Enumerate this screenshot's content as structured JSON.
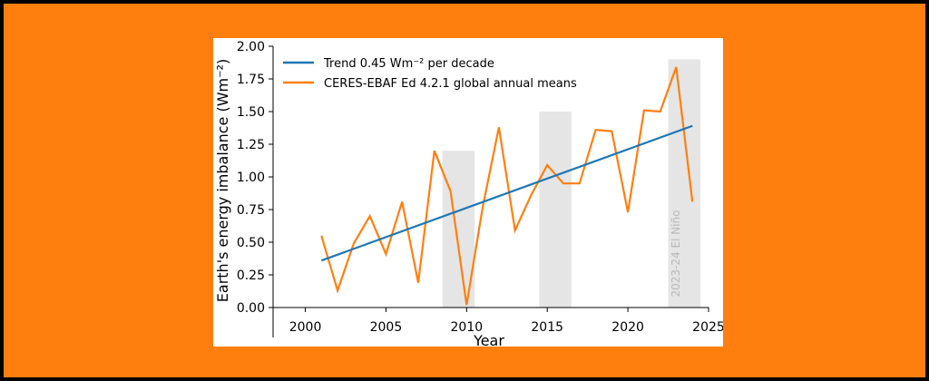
{
  "colors": {
    "border": "#000000",
    "background": "#FF7F0E",
    "trend": "#1F77B4",
    "series": "#FF7F0E",
    "shade": "#E5E5E5",
    "annotation": "#B8B8B8"
  },
  "chart_data": {
    "type": "line",
    "title": "",
    "xlabel": "Year",
    "ylabel": "Earth's energy imbalance (Wm⁻²)",
    "xlim": [
      1998,
      2025
    ],
    "ylim": [
      0,
      2
    ],
    "xticks": [
      2000,
      2005,
      2010,
      2015,
      2020,
      2025
    ],
    "yticks": [
      0.0,
      0.25,
      0.5,
      0.75,
      1.0,
      1.25,
      1.5,
      1.75,
      2.0
    ],
    "xtick_labels": [
      "2000",
      "2005",
      "2010",
      "2015",
      "2020",
      "2025"
    ],
    "ytick_labels": [
      "0.00",
      "0.25",
      "0.50",
      "0.75",
      "1.00",
      "1.25",
      "1.50",
      "1.75",
      "2.00"
    ],
    "grid": false,
    "legend_position": "top-left",
    "series": [
      {
        "name": "Trend 0.45 Wm⁻² per decade",
        "color": "#1F77B4",
        "x": [
          2001,
          2024
        ],
        "y": [
          0.36,
          1.39
        ]
      },
      {
        "name": "CERES-EBAF Ed 4.2.1 global annual means",
        "color": "#FF7F0E",
        "x": [
          2001,
          2002,
          2003,
          2004,
          2005,
          2006,
          2007,
          2008,
          2009,
          2010,
          2011,
          2012,
          2013,
          2014,
          2015,
          2016,
          2017,
          2018,
          2019,
          2020,
          2021,
          2022,
          2023,
          2024
        ],
        "y": [
          0.55,
          0.13,
          0.49,
          0.7,
          0.41,
          0.81,
          0.19,
          1.2,
          0.89,
          0.02,
          0.77,
          1.38,
          0.59,
          0.86,
          1.09,
          0.95,
          0.95,
          1.36,
          1.35,
          0.73,
          1.51,
          1.5,
          1.84,
          0.81
        ]
      }
    ],
    "shaded_regions": [
      {
        "x0": 2008.5,
        "x1": 2010.5,
        "y1": 1.2
      },
      {
        "x0": 2014.5,
        "x1": 2016.5,
        "y1": 1.5
      },
      {
        "x0": 2022.5,
        "x1": 2024.5,
        "y1": 1.9
      }
    ],
    "annotations": [
      {
        "text": "2023-24 El Niño",
        "x": 2023.2,
        "y": 0.08,
        "rotation": -90
      }
    ]
  }
}
